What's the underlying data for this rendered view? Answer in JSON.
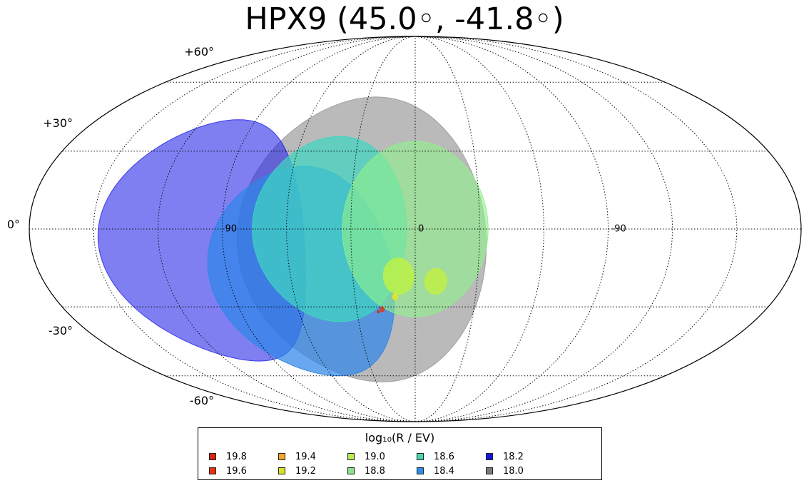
{
  "title": "HPX9 (45.0◦, -41.8◦)",
  "chart_data": {
    "type": "scatter",
    "projection": "mollweide",
    "grid": true,
    "lat_labels": [
      "+60°",
      "+30°",
      "0°",
      "-30°",
      "-60°"
    ],
    "lon_labels": [
      "90",
      "0",
      "-90"
    ],
    "legend": {
      "title": "log₁₀(R / EV)",
      "placement": "bottom",
      "entries": [
        {
          "label": "19.8",
          "color": "#d62410"
        },
        {
          "label": "19.6",
          "color": "#e8300e"
        },
        {
          "label": "19.4",
          "color": "#f5a623"
        },
        {
          "label": "19.2",
          "color": "#d9e020"
        },
        {
          "label": "19.0",
          "color": "#b7ec4d"
        },
        {
          "label": "18.8",
          "color": "#8ee08a"
        },
        {
          "label": "18.6",
          "color": "#46d6b0"
        },
        {
          "label": "18.4",
          "color": "#2d8bea"
        },
        {
          "label": "18.2",
          "color": "#1414e0"
        },
        {
          "label": "18.0",
          "color": "#7a7a7a"
        }
      ]
    },
    "regions": [
      {
        "rigidity": "18.0",
        "color": "#9a9a9a",
        "opacity": 0.68,
        "lon": 25,
        "lat": -5,
        "radius": 58
      },
      {
        "rigidity": "18.2",
        "color": "#2a2aea",
        "opacity": 0.6,
        "lon": 100,
        "lat": -5,
        "radius": 48
      },
      {
        "rigidity": "18.4",
        "color": "#2f86e8",
        "opacity": 0.72,
        "lon": 55,
        "lat": -18,
        "radius": 42
      },
      {
        "rigidity": "18.6",
        "color": "#3fd6c0",
        "opacity": 0.72,
        "lon": 40,
        "lat": 0,
        "radius": 36
      },
      {
        "rigidity": "18.8",
        "color": "#8ff08a",
        "opacity": 0.62,
        "lon": 0,
        "lat": 0,
        "radius": 34
      },
      {
        "rigidity": "19.0",
        "color": "#bff046",
        "opacity": 0.85,
        "lon": -10,
        "lat": -20,
        "radius": 5
      },
      {
        "rigidity": "19.0",
        "color": "#b9f04c",
        "opacity": 0.9,
        "lon": 8,
        "lat": -18,
        "radius": 7
      },
      {
        "rigidity": "19.2",
        "color": "#e4e42a",
        "opacity": 0.9,
        "lon": 10,
        "lat": -26,
        "radius": 1.2
      },
      {
        "rigidity": "19.6",
        "color": "#d2412a",
        "opacity": 0.9,
        "lon": 17,
        "lat": -31,
        "radius": 1.0
      },
      {
        "rigidity": "19.8",
        "color": "#c8301e",
        "opacity": 0.9,
        "lon": 19,
        "lat": -32,
        "radius": 0.5
      }
    ]
  }
}
